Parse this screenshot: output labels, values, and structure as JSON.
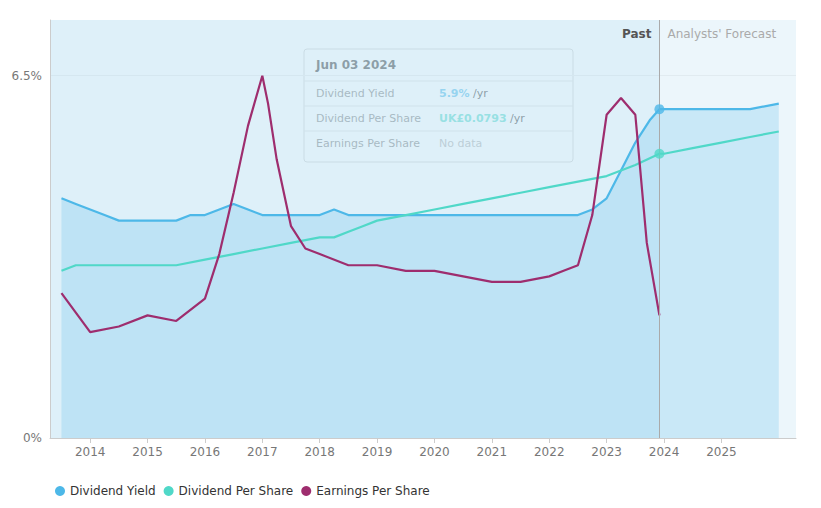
{
  "chart_data": {
    "type": "line",
    "xlim": [
      2013.3,
      2026.3
    ],
    "xticks": [
      2014,
      2015,
      2016,
      2017,
      2018,
      2019,
      2020,
      2021,
      2022,
      2023,
      2024,
      2025
    ],
    "ylim": [
      0.0,
      0.075
    ],
    "yticks": [
      {
        "value": 0.0,
        "label": "0%"
      },
      {
        "value": 0.065,
        "label": "6.5%"
      }
    ],
    "grid": "y",
    "legend": "lower left",
    "series": [
      {
        "name": "Dividend Yield",
        "type": "area",
        "color": "#4db8e8",
        "x": [
          2013.5,
          2013.75,
          2014.0,
          2014.25,
          2014.5,
          2014.75,
          2015.0,
          2015.25,
          2015.5,
          2015.75,
          2016.0,
          2016.25,
          2016.5,
          2016.75,
          2017.0,
          2017.25,
          2017.5,
          2017.75,
          2018.0,
          2018.25,
          2018.5,
          2018.75,
          2019.0,
          2019.25,
          2019.5,
          2019.75,
          2020.0,
          2020.25,
          2020.5,
          2020.75,
          2021.0,
          2021.25,
          2021.5,
          2021.75,
          2022.0,
          2022.25,
          2022.5,
          2022.75,
          2023.0,
          2023.25,
          2023.5,
          2023.75,
          2023.92,
          2024.0,
          2024.25,
          2024.5,
          2024.75,
          2025.0,
          2025.5,
          2026.0
        ],
        "values": [
          0.043,
          0.042,
          0.041,
          0.04,
          0.039,
          0.039,
          0.039,
          0.039,
          0.039,
          0.04,
          0.04,
          0.041,
          0.042,
          0.041,
          0.04,
          0.04,
          0.04,
          0.04,
          0.04,
          0.041,
          0.04,
          0.04,
          0.04,
          0.04,
          0.04,
          0.04,
          0.04,
          0.04,
          0.04,
          0.04,
          0.04,
          0.04,
          0.04,
          0.04,
          0.04,
          0.04,
          0.04,
          0.041,
          0.043,
          0.048,
          0.053,
          0.057,
          0.059,
          0.059,
          0.059,
          0.059,
          0.059,
          0.059,
          0.059,
          0.06
        ]
      },
      {
        "name": "Dividend Per Share",
        "type": "line",
        "color": "#50d8c8",
        "x": [
          2013.5,
          2013.75,
          2014.0,
          2014.5,
          2015.0,
          2015.5,
          2016.0,
          2016.5,
          2017.0,
          2017.5,
          2018.0,
          2018.25,
          2018.5,
          2018.75,
          2019.0,
          2019.5,
          2020.0,
          2020.5,
          2021.0,
          2021.5,
          2022.0,
          2022.5,
          2023.0,
          2023.5,
          2023.92,
          2024.0,
          2024.5,
          2025.0,
          2025.5,
          2026.0
        ],
        "values": [
          0.03,
          0.031,
          0.031,
          0.031,
          0.031,
          0.031,
          0.032,
          0.033,
          0.034,
          0.035,
          0.036,
          0.036,
          0.037,
          0.038,
          0.039,
          0.04,
          0.041,
          0.042,
          0.043,
          0.044,
          0.045,
          0.046,
          0.047,
          0.049,
          0.051,
          0.051,
          0.052,
          0.053,
          0.054,
          0.055
        ]
      },
      {
        "name": "Earnings Per Share",
        "type": "line",
        "color": "#9e2d6e",
        "x": [
          2013.5,
          2014.0,
          2014.5,
          2015.0,
          2015.5,
          2016.0,
          2016.25,
          2016.5,
          2016.75,
          2017.0,
          2017.1,
          2017.25,
          2017.5,
          2017.75,
          2018.0,
          2018.5,
          2019.0,
          2019.5,
          2020.0,
          2020.5,
          2021.0,
          2021.5,
          2022.0,
          2022.25,
          2022.5,
          2022.75,
          2023.0,
          2023.25,
          2023.5,
          2023.7,
          2023.92
        ],
        "values": [
          0.026,
          0.019,
          0.02,
          0.022,
          0.021,
          0.025,
          0.033,
          0.044,
          0.056,
          0.065,
          0.06,
          0.05,
          0.038,
          0.034,
          0.033,
          0.031,
          0.031,
          0.03,
          0.03,
          0.029,
          0.028,
          0.028,
          0.029,
          0.03,
          0.031,
          0.04,
          0.058,
          0.061,
          0.058,
          0.035,
          0.022
        ]
      }
    ],
    "markers": [
      {
        "series": "Dividend Yield",
        "x": 2023.92,
        "y": 0.059
      },
      {
        "series": "Dividend Per Share",
        "x": 2023.92,
        "y": 0.051
      }
    ],
    "divider": {
      "x": 2023.92,
      "past": {
        "label": "Past",
        "color": "#c8e6f5"
      },
      "forecast": {
        "label": "Analysts' Forecast",
        "color": "#daeef8"
      }
    },
    "tooltip": {
      "date": "Jun 03 2024",
      "rows": [
        {
          "name": "Dividend Yield",
          "value": "5.9%",
          "suffix": " /yr",
          "color": "#4db8e8"
        },
        {
          "name": "Dividend Per Share",
          "value": "UK£0.0793",
          "suffix": " /yr",
          "color": "#50d8c8"
        },
        {
          "name": "Earnings Per Share",
          "value": "No data",
          "color": "#aaaaaa"
        }
      ]
    }
  }
}
